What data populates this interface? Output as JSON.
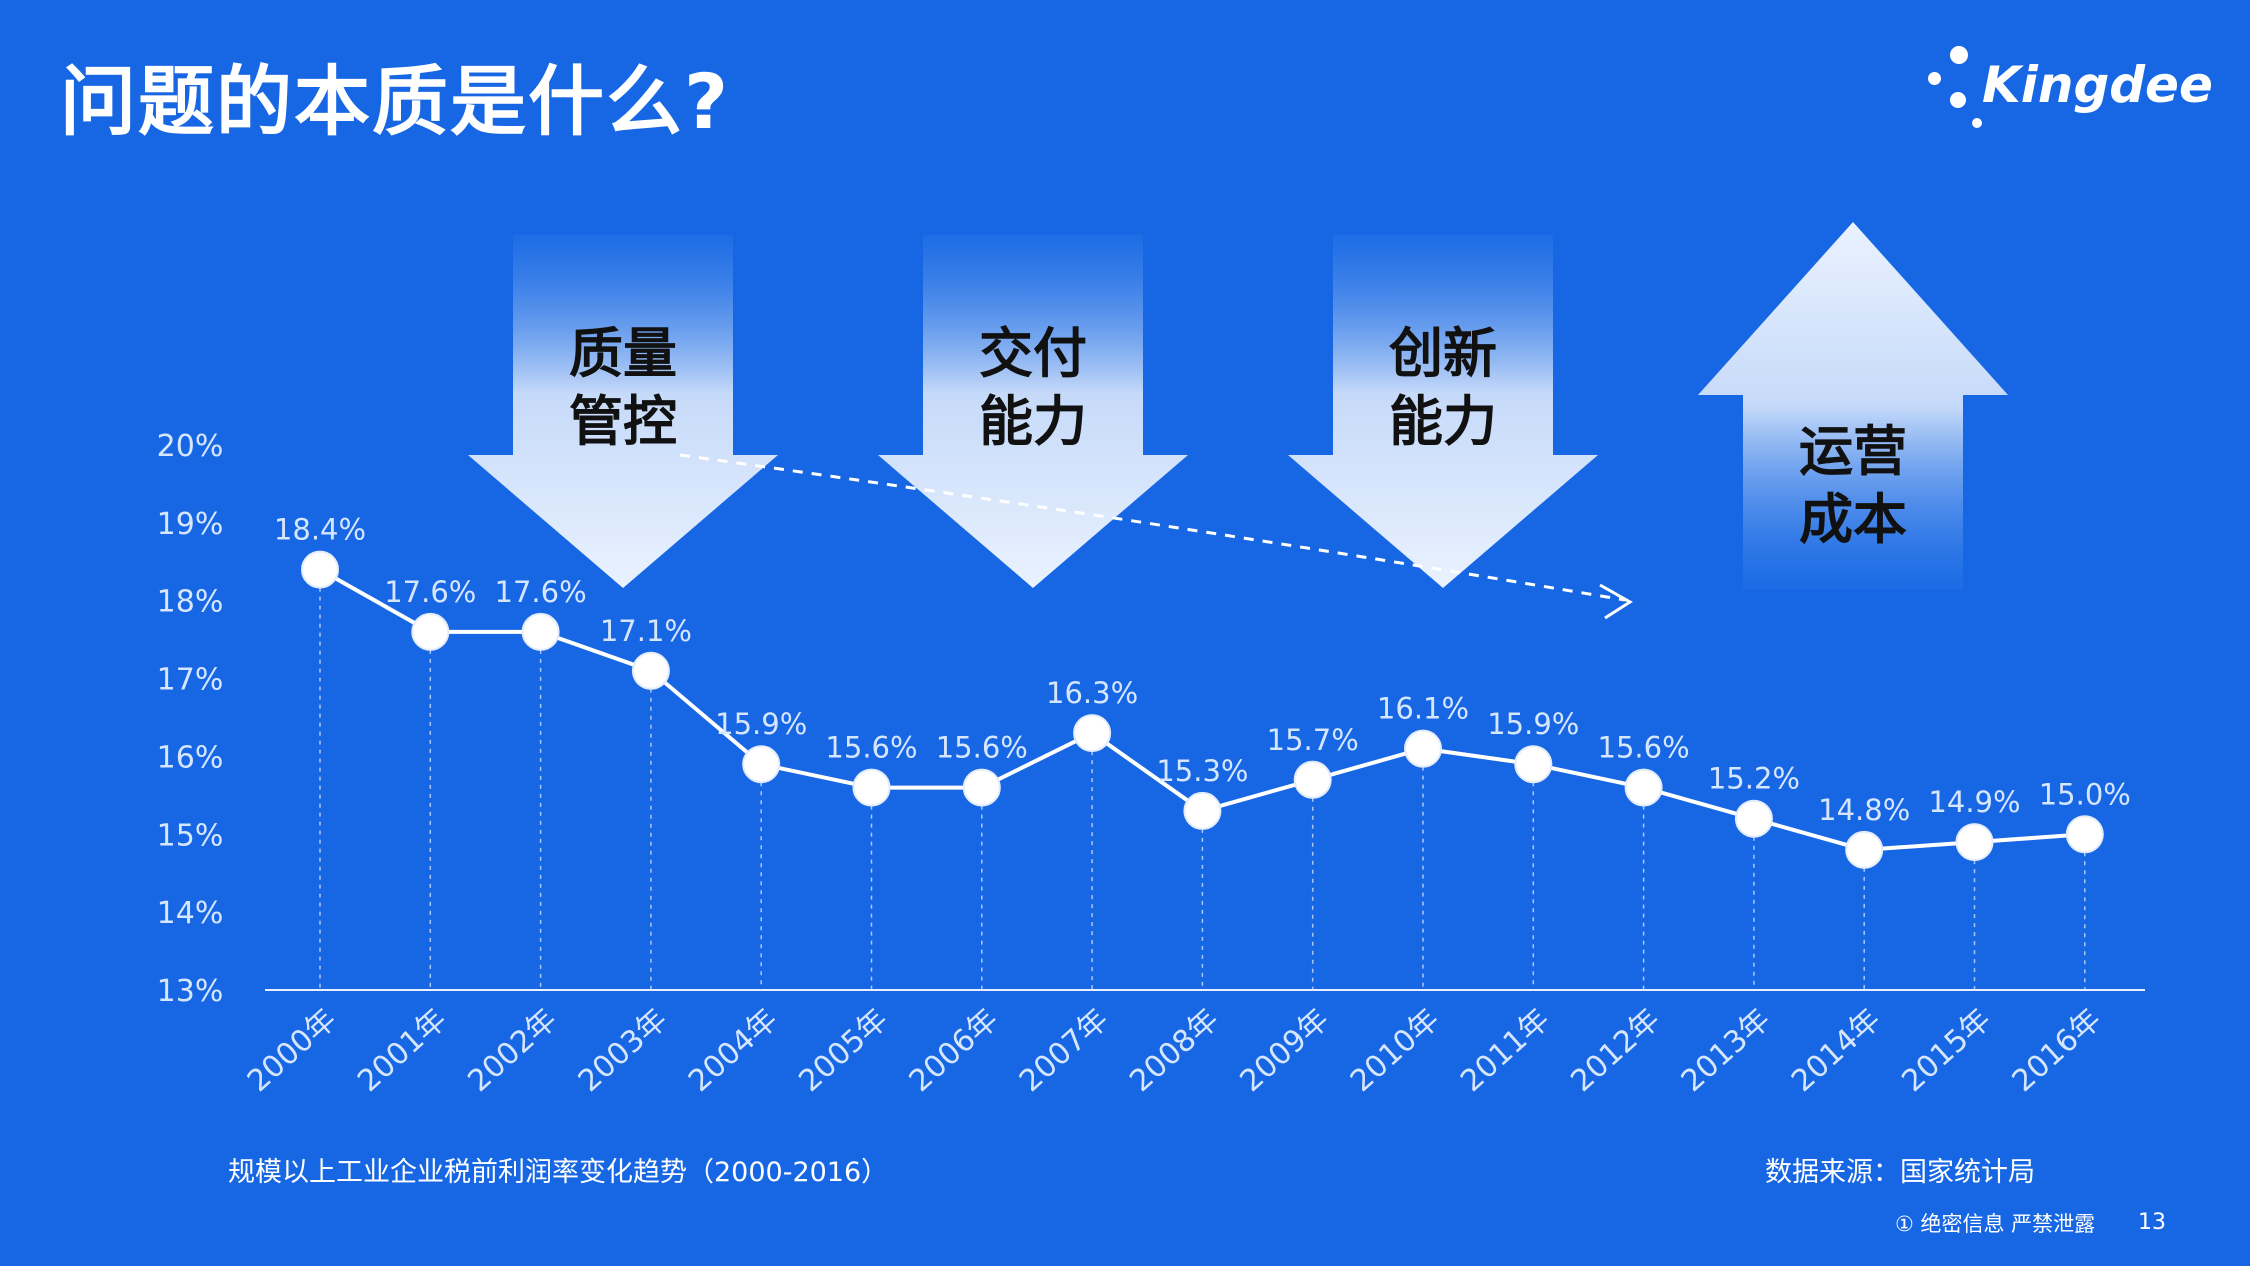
{
  "slide": {
    "title": "问题的本质是什么?",
    "logo_text": "Kingdee",
    "chart_caption": "规模以上工业企业税前利润率变化趋势（2000-2016）",
    "source": "数据来源：国家统计局",
    "confidential": "① 绝密信息 严禁泄露",
    "page_number": "13"
  },
  "arrows": {
    "down": [
      {
        "line1": "质量",
        "line2": "管控"
      },
      {
        "line1": "交付",
        "line2": "能力"
      },
      {
        "line1": "创新",
        "line2": "能力"
      }
    ],
    "up": {
      "line1": "运营",
      "line2": "成本"
    }
  },
  "colors": {
    "background": "#1767e4",
    "line": "#ffffff",
    "marker_fill": "#ffffff",
    "axis_text": "#d6e6ff"
  },
  "chart_data": {
    "type": "line",
    "title": "",
    "xlabel": "",
    "ylabel": "",
    "categories": [
      "2000年",
      "2001年",
      "2002年",
      "2003年",
      "2004年",
      "2005年",
      "2006年",
      "2007年",
      "2008年",
      "2009年",
      "2010年",
      "2011年",
      "2012年",
      "2013年",
      "2014年",
      "2015年",
      "2016年"
    ],
    "values": [
      18.4,
      17.6,
      17.6,
      17.1,
      15.9,
      15.6,
      15.6,
      16.3,
      15.3,
      15.7,
      16.1,
      15.9,
      15.6,
      15.2,
      14.8,
      14.9,
      15.0
    ],
    "value_labels": [
      "18.4%",
      "17.6%",
      "17.6%",
      "17.1%",
      "15.9%",
      "15.6%",
      "15.6%",
      "16.3%",
      "15.3%",
      "15.7%",
      "16.1%",
      "15.9%",
      "15.6%",
      "15.2%",
      "14.8%",
      "14.9%",
      "15.0%"
    ],
    "y_ticks": [
      "13%",
      "14%",
      "15%",
      "16%",
      "17%",
      "18%",
      "19%",
      "20%"
    ],
    "ylim": [
      13,
      20
    ],
    "grid": false,
    "trend_arrow": true
  }
}
